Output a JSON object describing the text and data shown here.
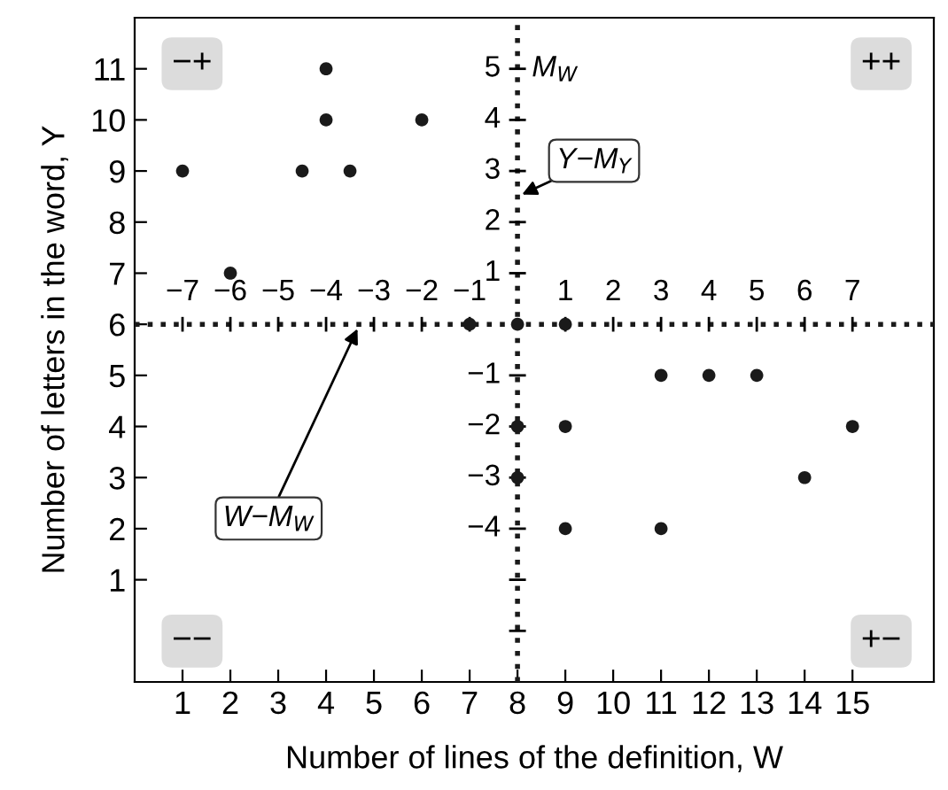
{
  "chart_data": {
    "type": "scatter",
    "xlabel": "Number of lines of the definition, W",
    "ylabel": "Number of letters in the word, Y",
    "x": [
      1,
      2,
      3.5,
      4,
      4,
      4.5,
      6,
      7,
      8,
      9,
      8,
      8,
      9,
      9,
      11,
      12,
      13,
      11,
      14,
      15
    ],
    "values": [
      9,
      7,
      9,
      11,
      10,
      9,
      10,
      6,
      6,
      6,
      4,
      3,
      4,
      2,
      5,
      5,
      5,
      2,
      3,
      4
    ],
    "color": "#1a1a1a",
    "marker": "circle",
    "xlim": [
      0,
      16.7
    ],
    "ylim": [
      -1,
      12
    ],
    "xticks": [
      1,
      2,
      3,
      4,
      5,
      6,
      7,
      8,
      9,
      10,
      11,
      12,
      13,
      14,
      15
    ],
    "yticks": [
      1,
      2,
      3,
      4,
      5,
      6,
      7,
      8,
      9,
      10,
      11
    ],
    "x2lim": [
      -8,
      8.7
    ],
    "x2ticks": [
      -7,
      -6,
      -5,
      -4,
      -3,
      -2,
      -1,
      1,
      2,
      3,
      4,
      5,
      6,
      7
    ],
    "y2lim": [
      -7,
      6
    ],
    "y2ticks": [
      {
        "value": -6,
        "label": null
      },
      {
        "value": -5,
        "label": null
      },
      -4,
      -3,
      -2,
      -1,
      1,
      2,
      3,
      4,
      5
    ],
    "ref_lines": [
      {
        "axis": "x",
        "value": 8,
        "line_style": "dotted",
        "color": "#1a1a1a"
      },
      {
        "axis": "y",
        "value": 6,
        "line_style": "dotted",
        "color": "#1a1a1a"
      }
    ],
    "annotations": [
      "−+",
      "++",
      "−−",
      "+−",
      "M$_{W}$",
      {
        "text": "Y−M$_{Y}$",
        "x": 8,
        "y": 8.5
      },
      {
        "text": "W−M$_{W}$",
        "x": 4.7,
        "y": 6
      }
    ],
    "grid": false
  }
}
